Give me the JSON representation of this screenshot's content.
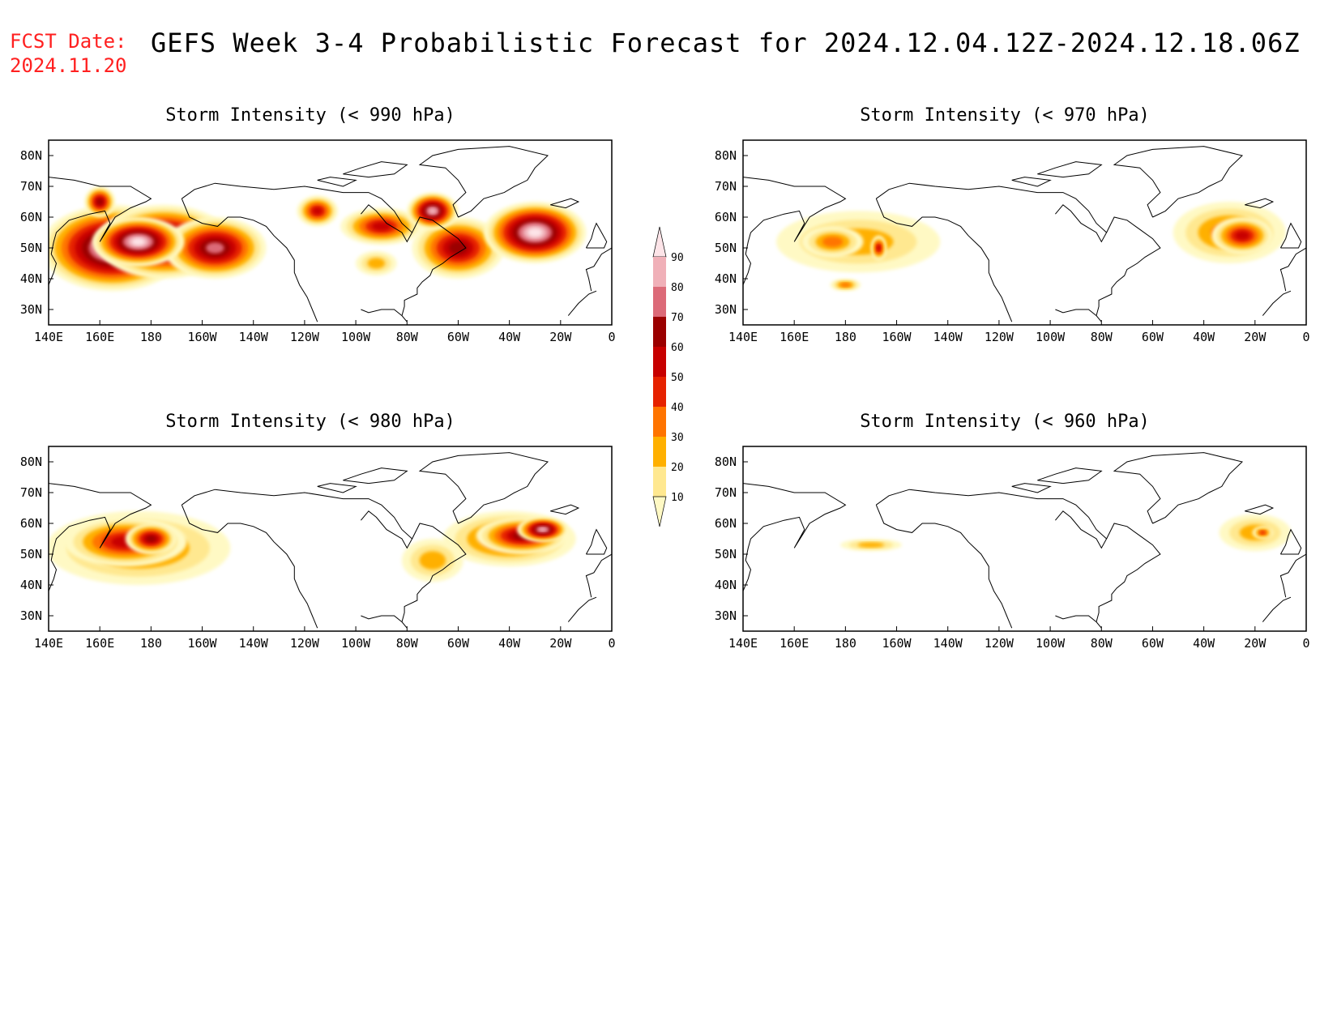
{
  "header": {
    "fcst_label": "FCST Date:",
    "fcst_date": "2024.11.20",
    "title": "GEFS Week 3-4 Probabilistic Forecast for 2024.12.04.12Z-2024.12.18.06Z"
  },
  "axes": {
    "lon_labels": [
      "140E",
      "160E",
      "180",
      "160W",
      "140W",
      "120W",
      "100W",
      "80W",
      "60W",
      "40W",
      "20W",
      "0"
    ],
    "lat_labels": [
      "80N",
      "70N",
      "60N",
      "50N",
      "40N",
      "30N"
    ]
  },
  "legend": {
    "levels": [
      "10",
      "20",
      "30",
      "40",
      "50",
      "60",
      "70",
      "80",
      "90"
    ],
    "colors": [
      "#fff9c4",
      "#ffe890",
      "#ffb000",
      "#ff7400",
      "#e62200",
      "#c70000",
      "#9b0000",
      "#dc6a78",
      "#f0b0b8",
      "#fde4e8"
    ]
  },
  "panels": [
    {
      "id": "p990",
      "title": "Storm Intensity (< 990 hPa)",
      "blobs": [
        {
          "lon": 165,
          "lat": 50,
          "rx": 28,
          "ry": 14,
          "level": 9
        },
        {
          "lon": 185,
          "lat": 52,
          "rx": 26,
          "ry": 12,
          "level": 8
        },
        {
          "lon": 205,
          "lat": 50,
          "rx": 20,
          "ry": 10,
          "level": 7
        },
        {
          "lon": 175,
          "lat": 52,
          "rx": 18,
          "ry": 8,
          "level": 9
        },
        {
          "lon": 160,
          "lat": 65,
          "rx": 6,
          "ry": 5,
          "level": 6
        },
        {
          "lon": 270,
          "lat": 57,
          "rx": 16,
          "ry": 6,
          "level": 5
        },
        {
          "lon": 300,
          "lat": 50,
          "rx": 18,
          "ry": 10,
          "level": 6
        },
        {
          "lon": 330,
          "lat": 55,
          "rx": 20,
          "ry": 10,
          "level": 9
        },
        {
          "lon": 290,
          "lat": 62,
          "rx": 10,
          "ry": 6,
          "level": 8
        },
        {
          "lon": 245,
          "lat": 62,
          "rx": 8,
          "ry": 5,
          "level": 5
        },
        {
          "lon": 268,
          "lat": 45,
          "rx": 8,
          "ry": 4,
          "level": 2
        }
      ]
    },
    {
      "id": "p970",
      "title": "Storm Intensity (< 970 hPa)",
      "blobs": [
        {
          "lon": 185,
          "lat": 52,
          "rx": 32,
          "ry": 10,
          "level": 2
        },
        {
          "lon": 175,
          "lat": 52,
          "rx": 12,
          "ry": 5,
          "level": 3
        },
        {
          "lon": 193,
          "lat": 50,
          "rx": 3,
          "ry": 4,
          "level": 5
        },
        {
          "lon": 330,
          "lat": 55,
          "rx": 22,
          "ry": 10,
          "level": 3
        },
        {
          "lon": 335,
          "lat": 54,
          "rx": 12,
          "ry": 6,
          "level": 5
        },
        {
          "lon": 180,
          "lat": 38,
          "rx": 6,
          "ry": 2,
          "level": 3
        }
      ]
    },
    {
      "id": "p980",
      "title": "Storm Intensity (< 980 hPa)",
      "blobs": [
        {
          "lon": 175,
          "lat": 52,
          "rx": 36,
          "ry": 12,
          "level": 3
        },
        {
          "lon": 170,
          "lat": 54,
          "rx": 24,
          "ry": 8,
          "level": 5
        },
        {
          "lon": 180,
          "lat": 55,
          "rx": 10,
          "ry": 5,
          "level": 6
        },
        {
          "lon": 320,
          "lat": 55,
          "rx": 26,
          "ry": 9,
          "level": 4
        },
        {
          "lon": 325,
          "lat": 56,
          "rx": 18,
          "ry": 6,
          "level": 6
        },
        {
          "lon": 333,
          "lat": 58,
          "rx": 10,
          "ry": 4,
          "level": 8
        },
        {
          "lon": 290,
          "lat": 48,
          "rx": 12,
          "ry": 7,
          "level": 2
        }
      ]
    },
    {
      "id": "p960",
      "title": "Storm Intensity (< 960 hPa)",
      "blobs": [
        {
          "lon": 340,
          "lat": 57,
          "rx": 14,
          "ry": 6,
          "level": 2
        },
        {
          "lon": 343,
          "lat": 57,
          "rx": 4,
          "ry": 2,
          "level": 4
        },
        {
          "lon": 190,
          "lat": 53,
          "rx": 12,
          "ry": 2,
          "level": 2
        }
      ]
    }
  ]
}
